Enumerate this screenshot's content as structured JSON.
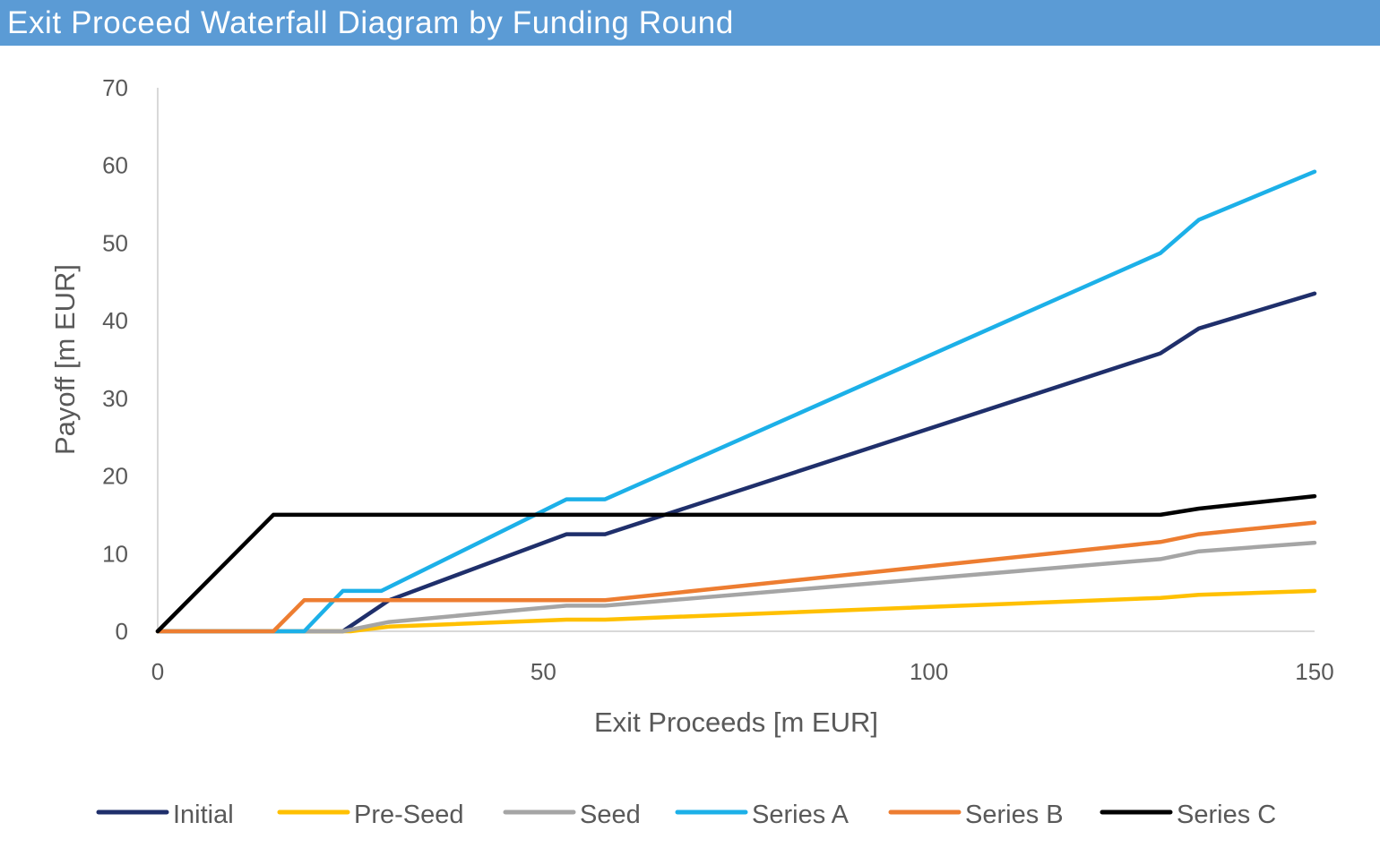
{
  "title": "Exit Proceed Waterfall Diagram by Funding Round",
  "colors": {
    "title_bar": "#5b9bd5",
    "axis": "#d9d9d9",
    "text": "#595959"
  },
  "chart_data": {
    "type": "line",
    "title": "Exit Proceed Waterfall Diagram by Funding Round",
    "xlabel": "Exit Proceeds [m EUR]",
    "ylabel": "Payoff [m EUR]",
    "xlim": [
      0,
      150
    ],
    "ylim": [
      0,
      70
    ],
    "xticks": [
      0,
      50,
      100,
      150
    ],
    "yticks": [
      0,
      10,
      20,
      30,
      40,
      50,
      60,
      70
    ],
    "grid": false,
    "legend": "bottom",
    "series": [
      {
        "name": "Initial",
        "color": "#1f2f6b",
        "x": [
          0,
          24,
          30,
          53,
          58,
          130,
          135,
          150
        ],
        "y": [
          0,
          0,
          4,
          12.5,
          12.5,
          35.8,
          39,
          43.5
        ]
      },
      {
        "name": "Pre-Seed",
        "color": "#ffc000",
        "x": [
          0,
          25,
          30,
          53,
          58,
          130,
          135,
          150
        ],
        "y": [
          0,
          0,
          0.6,
          1.5,
          1.5,
          4.3,
          4.7,
          5.2
        ]
      },
      {
        "name": "Seed",
        "color": "#a5a5a5",
        "x": [
          0,
          24,
          30,
          53,
          58,
          130,
          135,
          150
        ],
        "y": [
          0,
          0,
          1.2,
          3.3,
          3.3,
          9.3,
          10.3,
          11.4
        ]
      },
      {
        "name": "Series A",
        "color": "#1cb0e8",
        "x": [
          0,
          19,
          24,
          29,
          53,
          58,
          130,
          135,
          150
        ],
        "y": [
          0,
          0,
          5.2,
          5.2,
          17,
          17,
          48.7,
          53,
          59.2
        ]
      },
      {
        "name": "Series B",
        "color": "#ed7d31",
        "x": [
          0,
          15,
          19,
          58,
          130,
          135,
          150
        ],
        "y": [
          0,
          0,
          4,
          4,
          11.5,
          12.5,
          14
        ]
      },
      {
        "name": "Series C",
        "color": "#000000",
        "x": [
          0,
          15,
          130,
          135,
          150
        ],
        "y": [
          0,
          15,
          15,
          15.8,
          17.4
        ]
      }
    ]
  }
}
